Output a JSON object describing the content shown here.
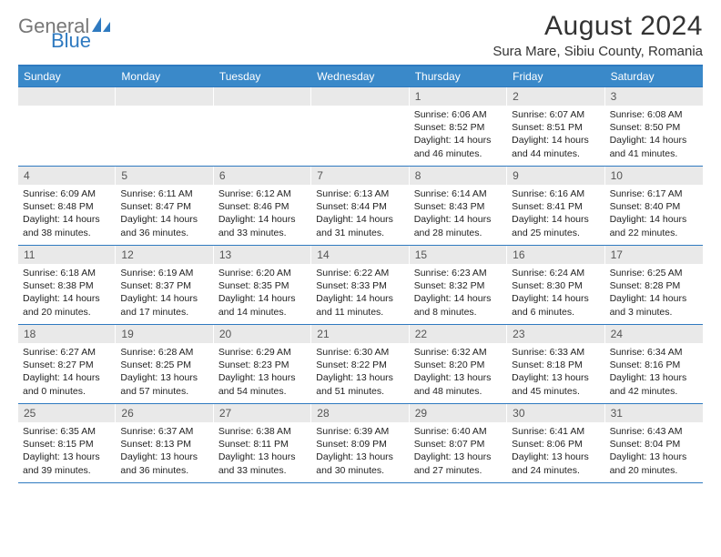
{
  "brand": {
    "name1": "General",
    "name2": "Blue",
    "color_gray": "#777777",
    "color_blue": "#2f7ac0"
  },
  "title": "August 2024",
  "location": "Sura Mare, Sibiu County, Romania",
  "header_bg": "#3a89c9",
  "rule_color": "#2f7ac0",
  "daynum_bg": "#e9e9e9",
  "weekdays": [
    "Sunday",
    "Monday",
    "Tuesday",
    "Wednesday",
    "Thursday",
    "Friday",
    "Saturday"
  ],
  "weeks": [
    [
      {
        "n": "",
        "sr": "",
        "ss": "",
        "dl": ""
      },
      {
        "n": "",
        "sr": "",
        "ss": "",
        "dl": ""
      },
      {
        "n": "",
        "sr": "",
        "ss": "",
        "dl": ""
      },
      {
        "n": "",
        "sr": "",
        "ss": "",
        "dl": ""
      },
      {
        "n": "1",
        "sr": "Sunrise: 6:06 AM",
        "ss": "Sunset: 8:52 PM",
        "dl": "Daylight: 14 hours and 46 minutes."
      },
      {
        "n": "2",
        "sr": "Sunrise: 6:07 AM",
        "ss": "Sunset: 8:51 PM",
        "dl": "Daylight: 14 hours and 44 minutes."
      },
      {
        "n": "3",
        "sr": "Sunrise: 6:08 AM",
        "ss": "Sunset: 8:50 PM",
        "dl": "Daylight: 14 hours and 41 minutes."
      }
    ],
    [
      {
        "n": "4",
        "sr": "Sunrise: 6:09 AM",
        "ss": "Sunset: 8:48 PM",
        "dl": "Daylight: 14 hours and 38 minutes."
      },
      {
        "n": "5",
        "sr": "Sunrise: 6:11 AM",
        "ss": "Sunset: 8:47 PM",
        "dl": "Daylight: 14 hours and 36 minutes."
      },
      {
        "n": "6",
        "sr": "Sunrise: 6:12 AM",
        "ss": "Sunset: 8:46 PM",
        "dl": "Daylight: 14 hours and 33 minutes."
      },
      {
        "n": "7",
        "sr": "Sunrise: 6:13 AM",
        "ss": "Sunset: 8:44 PM",
        "dl": "Daylight: 14 hours and 31 minutes."
      },
      {
        "n": "8",
        "sr": "Sunrise: 6:14 AM",
        "ss": "Sunset: 8:43 PM",
        "dl": "Daylight: 14 hours and 28 minutes."
      },
      {
        "n": "9",
        "sr": "Sunrise: 6:16 AM",
        "ss": "Sunset: 8:41 PM",
        "dl": "Daylight: 14 hours and 25 minutes."
      },
      {
        "n": "10",
        "sr": "Sunrise: 6:17 AM",
        "ss": "Sunset: 8:40 PM",
        "dl": "Daylight: 14 hours and 22 minutes."
      }
    ],
    [
      {
        "n": "11",
        "sr": "Sunrise: 6:18 AM",
        "ss": "Sunset: 8:38 PM",
        "dl": "Daylight: 14 hours and 20 minutes."
      },
      {
        "n": "12",
        "sr": "Sunrise: 6:19 AM",
        "ss": "Sunset: 8:37 PM",
        "dl": "Daylight: 14 hours and 17 minutes."
      },
      {
        "n": "13",
        "sr": "Sunrise: 6:20 AM",
        "ss": "Sunset: 8:35 PM",
        "dl": "Daylight: 14 hours and 14 minutes."
      },
      {
        "n": "14",
        "sr": "Sunrise: 6:22 AM",
        "ss": "Sunset: 8:33 PM",
        "dl": "Daylight: 14 hours and 11 minutes."
      },
      {
        "n": "15",
        "sr": "Sunrise: 6:23 AM",
        "ss": "Sunset: 8:32 PM",
        "dl": "Daylight: 14 hours and 8 minutes."
      },
      {
        "n": "16",
        "sr": "Sunrise: 6:24 AM",
        "ss": "Sunset: 8:30 PM",
        "dl": "Daylight: 14 hours and 6 minutes."
      },
      {
        "n": "17",
        "sr": "Sunrise: 6:25 AM",
        "ss": "Sunset: 8:28 PM",
        "dl": "Daylight: 14 hours and 3 minutes."
      }
    ],
    [
      {
        "n": "18",
        "sr": "Sunrise: 6:27 AM",
        "ss": "Sunset: 8:27 PM",
        "dl": "Daylight: 14 hours and 0 minutes."
      },
      {
        "n": "19",
        "sr": "Sunrise: 6:28 AM",
        "ss": "Sunset: 8:25 PM",
        "dl": "Daylight: 13 hours and 57 minutes."
      },
      {
        "n": "20",
        "sr": "Sunrise: 6:29 AM",
        "ss": "Sunset: 8:23 PM",
        "dl": "Daylight: 13 hours and 54 minutes."
      },
      {
        "n": "21",
        "sr": "Sunrise: 6:30 AM",
        "ss": "Sunset: 8:22 PM",
        "dl": "Daylight: 13 hours and 51 minutes."
      },
      {
        "n": "22",
        "sr": "Sunrise: 6:32 AM",
        "ss": "Sunset: 8:20 PM",
        "dl": "Daylight: 13 hours and 48 minutes."
      },
      {
        "n": "23",
        "sr": "Sunrise: 6:33 AM",
        "ss": "Sunset: 8:18 PM",
        "dl": "Daylight: 13 hours and 45 minutes."
      },
      {
        "n": "24",
        "sr": "Sunrise: 6:34 AM",
        "ss": "Sunset: 8:16 PM",
        "dl": "Daylight: 13 hours and 42 minutes."
      }
    ],
    [
      {
        "n": "25",
        "sr": "Sunrise: 6:35 AM",
        "ss": "Sunset: 8:15 PM",
        "dl": "Daylight: 13 hours and 39 minutes."
      },
      {
        "n": "26",
        "sr": "Sunrise: 6:37 AM",
        "ss": "Sunset: 8:13 PM",
        "dl": "Daylight: 13 hours and 36 minutes."
      },
      {
        "n": "27",
        "sr": "Sunrise: 6:38 AM",
        "ss": "Sunset: 8:11 PM",
        "dl": "Daylight: 13 hours and 33 minutes."
      },
      {
        "n": "28",
        "sr": "Sunrise: 6:39 AM",
        "ss": "Sunset: 8:09 PM",
        "dl": "Daylight: 13 hours and 30 minutes."
      },
      {
        "n": "29",
        "sr": "Sunrise: 6:40 AM",
        "ss": "Sunset: 8:07 PM",
        "dl": "Daylight: 13 hours and 27 minutes."
      },
      {
        "n": "30",
        "sr": "Sunrise: 6:41 AM",
        "ss": "Sunset: 8:06 PM",
        "dl": "Daylight: 13 hours and 24 minutes."
      },
      {
        "n": "31",
        "sr": "Sunrise: 6:43 AM",
        "ss": "Sunset: 8:04 PM",
        "dl": "Daylight: 13 hours and 20 minutes."
      }
    ]
  ]
}
